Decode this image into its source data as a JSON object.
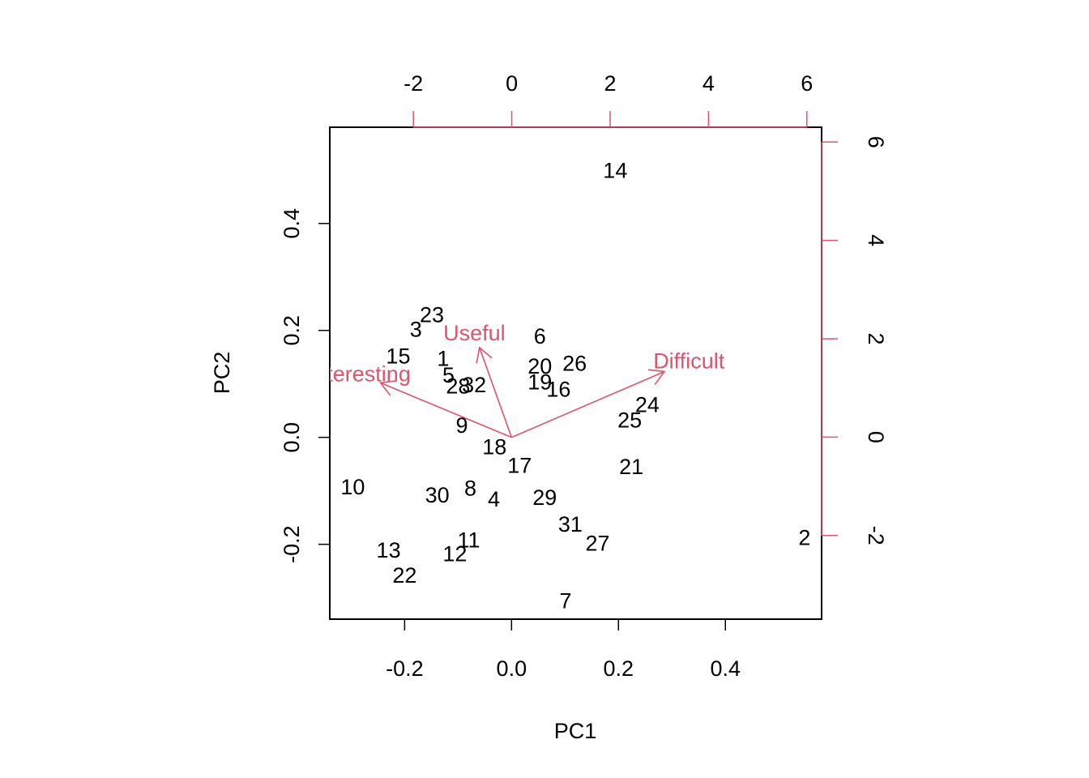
{
  "chart_data": {
    "type": "scatter",
    "subtype": "biplot",
    "xlabel": "PC1",
    "ylabel": "PC2",
    "xlim": [
      -0.34,
      0.58
    ],
    "ylim": [
      -0.34,
      0.58
    ],
    "xticks": [
      "-0.2",
      "0.0",
      "0.2",
      "0.4"
    ],
    "xtick_values": [
      -0.2,
      0.0,
      0.2,
      0.4
    ],
    "yticks": [
      "-0.2",
      "0.0",
      "0.2",
      "0.4"
    ],
    "ytick_values": [
      -0.2,
      0.0,
      0.2,
      0.4
    ],
    "top_axis": {
      "lim": [
        -3.7,
        6.3
      ],
      "ticks": [
        "-2",
        "0",
        "2",
        "4",
        "6"
      ],
      "tick_values": [
        -2,
        0,
        2,
        4,
        6
      ]
    },
    "right_axis": {
      "lim": [
        -3.7,
        6.3
      ],
      "ticks": [
        "-2",
        "0",
        "2",
        "4",
        "6"
      ],
      "tick_values": [
        -2,
        0,
        2,
        4,
        6
      ]
    },
    "grid": false,
    "colors": {
      "points": "#000000",
      "loadings": "#DF536B"
    },
    "observations": [
      {
        "label": "1",
        "x": -0.128,
        "y": 0.147
      },
      {
        "label": "2",
        "x": 0.548,
        "y": -0.188
      },
      {
        "label": "3",
        "x": -0.179,
        "y": 0.202
      },
      {
        "label": "4",
        "x": -0.033,
        "y": -0.116
      },
      {
        "label": "5",
        "x": -0.118,
        "y": 0.116
      },
      {
        "label": "6",
        "x": 0.053,
        "y": 0.189
      },
      {
        "label": "7",
        "x": 0.101,
        "y": -0.306
      },
      {
        "label": "8",
        "x": -0.077,
        "y": -0.095
      },
      {
        "label": "9",
        "x": -0.093,
        "y": 0.022
      },
      {
        "label": "10",
        "x": -0.297,
        "y": -0.093
      },
      {
        "label": "11",
        "x": -0.08,
        "y": -0.192
      },
      {
        "label": "12",
        "x": -0.106,
        "y": -0.218
      },
      {
        "label": "13",
        "x": -0.23,
        "y": -0.211
      },
      {
        "label": "14",
        "x": 0.194,
        "y": 0.499
      },
      {
        "label": "15",
        "x": -0.212,
        "y": 0.152
      },
      {
        "label": "16",
        "x": 0.088,
        "y": 0.09
      },
      {
        "label": "17",
        "x": 0.015,
        "y": -0.053
      },
      {
        "label": "18",
        "x": -0.032,
        "y": -0.018
      },
      {
        "label": "19",
        "x": 0.053,
        "y": 0.103
      },
      {
        "label": "20",
        "x": 0.053,
        "y": 0.133
      },
      {
        "label": "21",
        "x": 0.224,
        "y": -0.055
      },
      {
        "label": "22",
        "x": -0.2,
        "y": -0.258
      },
      {
        "label": "23",
        "x": -0.149,
        "y": 0.229
      },
      {
        "label": "24",
        "x": 0.254,
        "y": 0.061
      },
      {
        "label": "25",
        "x": 0.221,
        "y": 0.032
      },
      {
        "label": "26",
        "x": 0.118,
        "y": 0.138
      },
      {
        "label": "27",
        "x": 0.161,
        "y": -0.198
      },
      {
        "label": "28",
        "x": -0.1,
        "y": 0.096
      },
      {
        "label": "29",
        "x": 0.062,
        "y": -0.113
      },
      {
        "label": "30",
        "x": -0.139,
        "y": -0.108
      },
      {
        "label": "31",
        "x": 0.11,
        "y": -0.163
      },
      {
        "label": "32",
        "x": -0.07,
        "y": 0.098
      }
    ],
    "loadings": [
      {
        "label": "Interesting",
        "x": -0.245,
        "y": 0.102
      },
      {
        "label": "Useful",
        "x": -0.06,
        "y": 0.168
      },
      {
        "label": "Difficult",
        "x": 0.286,
        "y": 0.123
      }
    ]
  }
}
